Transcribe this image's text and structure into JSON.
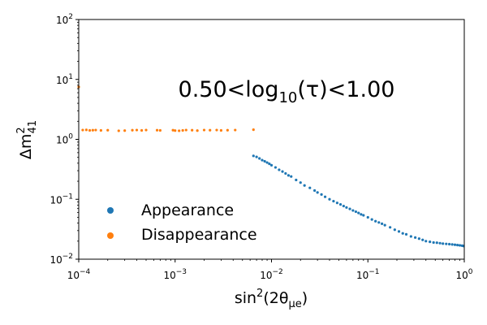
{
  "chart_data": {
    "type": "scatter",
    "x_scale": "log",
    "y_scale": "log",
    "xlim": [
      0.0001,
      1
    ],
    "ylim": [
      0.01,
      100
    ],
    "x_ticks": [
      {
        "value": 0.0001,
        "base": "10",
        "exp": "−4"
      },
      {
        "value": 0.001,
        "base": "10",
        "exp": "−3"
      },
      {
        "value": 0.01,
        "base": "10",
        "exp": "−2"
      },
      {
        "value": 0.1,
        "base": "10",
        "exp": "−1"
      },
      {
        "value": 1,
        "base": "10",
        "exp": "0"
      }
    ],
    "y_ticks": [
      {
        "value": 0.01,
        "base": "10",
        "exp": "−2"
      },
      {
        "value": 0.1,
        "base": "10",
        "exp": "−1"
      },
      {
        "value": 1,
        "base": "10",
        "exp": "0"
      },
      {
        "value": 10,
        "base": "10",
        "exp": "1"
      },
      {
        "value": 100,
        "base": "10",
        "exp": "2"
      }
    ],
    "xlabel": {
      "pre": "sin",
      "sup": "2",
      "mid": "(2θ",
      "sub": "μe",
      "post": ")"
    },
    "ylabel": {
      "pre": "Δm",
      "sup": "2",
      "sub": "41"
    },
    "annotation": {
      "pre": "0.50<log",
      "sub": "10",
      "post": "(τ)<1.00"
    },
    "legend_position": "lower-left",
    "grid": false,
    "series": [
      {
        "name": "Appearance",
        "color": "#1f77b4",
        "x": [
          0.0065,
          0.007,
          0.0075,
          0.008,
          0.0085,
          0.009,
          0.0095,
          0.01,
          0.011,
          0.012,
          0.013,
          0.014,
          0.015,
          0.016,
          0.018,
          0.02,
          0.022,
          0.025,
          0.028,
          0.03,
          0.033,
          0.036,
          0.04,
          0.044,
          0.048,
          0.052,
          0.056,
          0.06,
          0.065,
          0.07,
          0.075,
          0.08,
          0.085,
          0.09,
          0.1,
          0.11,
          0.12,
          0.13,
          0.14,
          0.15,
          0.17,
          0.19,
          0.21,
          0.23,
          0.25,
          0.28,
          0.31,
          0.34,
          0.37,
          0.4,
          0.44,
          0.48,
          0.52,
          0.56,
          0.6,
          0.65,
          0.7,
          0.75,
          0.8,
          0.85,
          0.9,
          0.95,
          0.98
        ],
        "y": [
          0.53,
          0.51,
          0.48,
          0.45,
          0.43,
          0.41,
          0.39,
          0.37,
          0.34,
          0.31,
          0.29,
          0.27,
          0.25,
          0.24,
          0.21,
          0.19,
          0.17,
          0.155,
          0.14,
          0.13,
          0.12,
          0.11,
          0.1,
          0.093,
          0.087,
          0.082,
          0.077,
          0.073,
          0.069,
          0.065,
          0.062,
          0.059,
          0.056,
          0.054,
          0.05,
          0.046,
          0.043,
          0.041,
          0.039,
          0.037,
          0.034,
          0.031,
          0.029,
          0.027,
          0.026,
          0.024,
          0.023,
          0.022,
          0.021,
          0.02,
          0.0195,
          0.019,
          0.0188,
          0.0185,
          0.0182,
          0.018,
          0.0178,
          0.0176,
          0.0174,
          0.0172,
          0.017,
          0.0168,
          0.0166
        ]
      },
      {
        "name": "Disappearance",
        "color": "#ff7f0e",
        "x": [
          0.00011,
          0.00012,
          0.00013,
          0.00014,
          0.00015,
          0.00017,
          0.0002,
          0.00026,
          0.0003,
          0.00036,
          0.0004,
          0.00045,
          0.0005,
          0.00065,
          0.0007,
          0.00095,
          0.001,
          0.0011,
          0.0012,
          0.0013,
          0.0015,
          0.0017,
          0.002,
          0.0023,
          0.0027,
          0.003,
          0.0035,
          0.0042,
          0.0065
        ],
        "y": [
          1.43,
          1.44,
          1.41,
          1.42,
          1.43,
          1.41,
          1.42,
          1.39,
          1.4,
          1.42,
          1.43,
          1.41,
          1.43,
          1.42,
          1.41,
          1.42,
          1.4,
          1.39,
          1.41,
          1.43,
          1.42,
          1.4,
          1.43,
          1.42,
          1.43,
          1.41,
          1.42,
          1.43,
          1.45
        ]
      }
    ],
    "extra_points": [
      {
        "series": "Disappearance",
        "x": 0.0001,
        "y": 7.5
      }
    ]
  }
}
